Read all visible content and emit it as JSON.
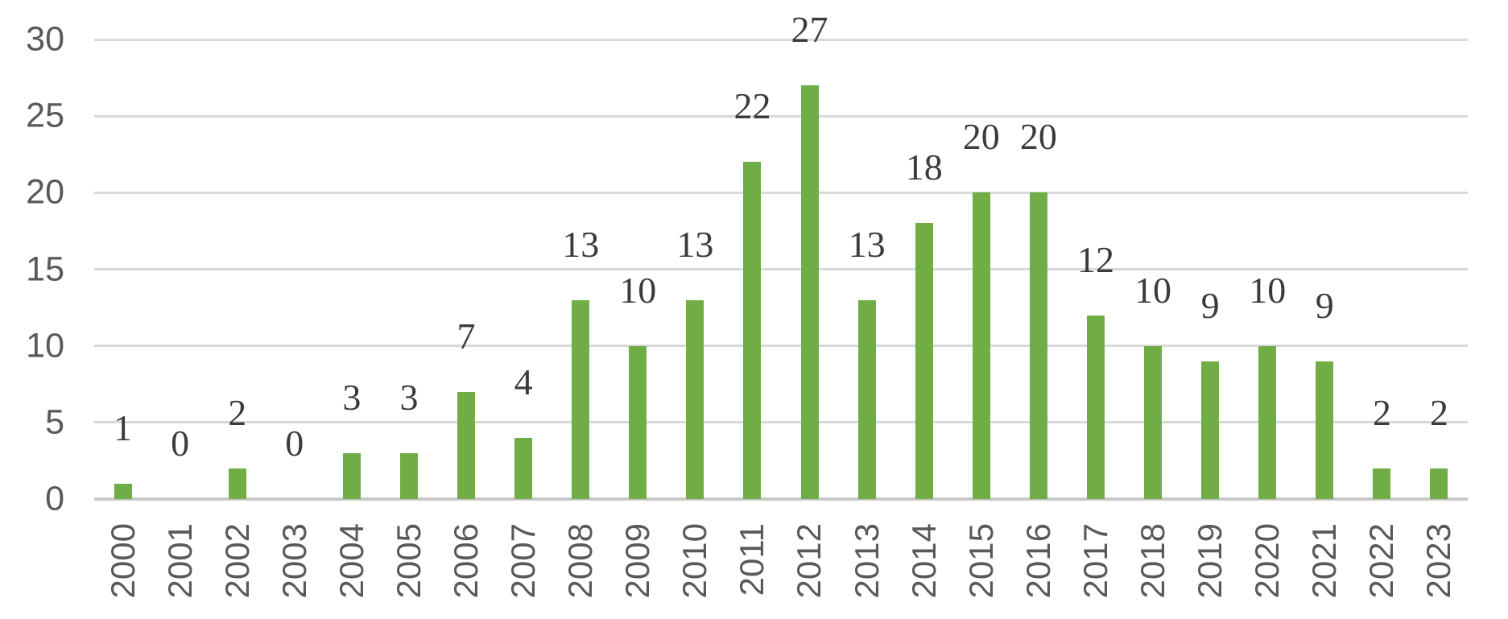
{
  "chart_data": {
    "type": "bar",
    "title": "",
    "xlabel": "",
    "ylabel": "",
    "categories": [
      "2000",
      "2001",
      "2002",
      "2003",
      "2004",
      "2005",
      "2006",
      "2007",
      "2008",
      "2009",
      "2010",
      "2011",
      "2012",
      "2013",
      "2014",
      "2015",
      "2016",
      "2017",
      "2018",
      "2019",
      "2020",
      "2021",
      "2022",
      "2023"
    ],
    "values": [
      1,
      0,
      2,
      0,
      3,
      3,
      7,
      4,
      13,
      10,
      13,
      22,
      27,
      13,
      18,
      20,
      20,
      12,
      10,
      9,
      10,
      9,
      2,
      2
    ],
    "ylim": [
      0,
      30
    ],
    "yticks": [
      0,
      5,
      10,
      15,
      20,
      25,
      30
    ],
    "grid": true,
    "legend": false,
    "data_labels_position": "outside-end",
    "colors": {
      "bar": "#70AD47",
      "gridline": "#D9D9D9",
      "axis_line": "#C8C8C8",
      "axis_text": "#595959",
      "data_label_text": "#3B3B3B",
      "background": "#FFFFFF"
    }
  }
}
